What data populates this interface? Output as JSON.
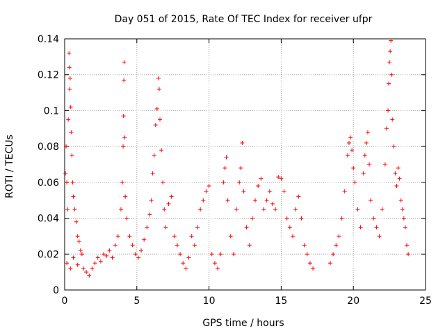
{
  "chart_data": {
    "type": "scatter",
    "title": "Day 051 of 2015, Rate Of TEC Index for receiver ufpr",
    "xlabel": "GPS time / hours",
    "ylabel": "ROTI / TECUs",
    "xlim": [
      0,
      25
    ],
    "ylim": [
      0,
      0.14
    ],
    "xticks": [
      "0",
      "5",
      "10",
      "15",
      "20",
      "25"
    ],
    "yticks": [
      "0",
      "0.02",
      "0.04",
      "0.06",
      "0.08",
      "0.1",
      "0.12",
      "0.14"
    ],
    "xtick_values": [
      0,
      5,
      10,
      15,
      20,
      25
    ],
    "ytick_values": [
      0,
      0.02,
      0.04,
      0.06,
      0.08,
      0.1,
      0.12,
      0.14
    ],
    "grid": true,
    "marker": "+",
    "color": "#ff0000",
    "series": [
      {
        "name": "ROTI",
        "points": [
          [
            0.05,
            0.065
          ],
          [
            0.1,
            0.08
          ],
          [
            0.15,
            0.06
          ],
          [
            0.2,
            0.045
          ],
          [
            0.25,
            0.095
          ],
          [
            0.3,
            0.132
          ],
          [
            0.32,
            0.124
          ],
          [
            0.35,
            0.112
          ],
          [
            0.38,
            0.118
          ],
          [
            0.42,
            0.102
          ],
          [
            0.45,
            0.088
          ],
          [
            0.5,
            0.075
          ],
          [
            0.55,
            0.06
          ],
          [
            0.6,
            0.052
          ],
          [
            0.7,
            0.045
          ],
          [
            0.8,
            0.038
          ],
          [
            0.9,
            0.03
          ],
          [
            1.0,
            0.027
          ],
          [
            1.1,
            0.022
          ],
          [
            1.2,
            0.02
          ],
          [
            0.15,
            0.015
          ],
          [
            0.4,
            0.012
          ],
          [
            0.6,
            0.018
          ],
          [
            0.9,
            0.014
          ],
          [
            1.3,
            0.012
          ],
          [
            1.5,
            0.01
          ],
          [
            1.7,
            0.008
          ],
          [
            1.9,
            0.012
          ],
          [
            2.1,
            0.015
          ],
          [
            2.3,
            0.018
          ],
          [
            2.5,
            0.016
          ],
          [
            2.7,
            0.02
          ],
          [
            2.9,
            0.019
          ],
          [
            3.1,
            0.022
          ],
          [
            3.3,
            0.018
          ],
          [
            3.5,
            0.025
          ],
          [
            3.7,
            0.03
          ],
          [
            3.9,
            0.045
          ],
          [
            4.0,
            0.06
          ],
          [
            4.05,
            0.08
          ],
          [
            4.08,
            0.097
          ],
          [
            4.1,
            0.117
          ],
          [
            4.12,
            0.127
          ],
          [
            4.15,
            0.085
          ],
          [
            4.2,
            0.052
          ],
          [
            4.3,
            0.04
          ],
          [
            4.5,
            0.03
          ],
          [
            4.7,
            0.025
          ],
          [
            4.9,
            0.02
          ],
          [
            5.1,
            0.018
          ],
          [
            5.3,
            0.022
          ],
          [
            5.5,
            0.028
          ],
          [
            5.7,
            0.035
          ],
          [
            5.9,
            0.042
          ],
          [
            6.0,
            0.05
          ],
          [
            6.1,
            0.065
          ],
          [
            6.2,
            0.075
          ],
          [
            6.3,
            0.092
          ],
          [
            6.4,
            0.101
          ],
          [
            6.5,
            0.118
          ],
          [
            6.55,
            0.112
          ],
          [
            6.6,
            0.095
          ],
          [
            6.7,
            0.078
          ],
          [
            6.8,
            0.06
          ],
          [
            6.9,
            0.045
          ],
          [
            7.0,
            0.035
          ],
          [
            7.2,
            0.048
          ],
          [
            7.4,
            0.052
          ],
          [
            7.6,
            0.03
          ],
          [
            7.8,
            0.025
          ],
          [
            8.0,
            0.02
          ],
          [
            8.2,
            0.015
          ],
          [
            8.4,
            0.012
          ],
          [
            8.6,
            0.018
          ],
          [
            8.8,
            0.03
          ],
          [
            9.0,
            0.025
          ],
          [
            9.2,
            0.035
          ],
          [
            9.4,
            0.045
          ],
          [
            9.6,
            0.05
          ],
          [
            9.8,
            0.055
          ],
          [
            10.0,
            0.058
          ],
          [
            10.2,
            0.02
          ],
          [
            10.4,
            0.015
          ],
          [
            10.6,
            0.012
          ],
          [
            10.8,
            0.02
          ],
          [
            11.0,
            0.06
          ],
          [
            11.1,
            0.068
          ],
          [
            11.2,
            0.074
          ],
          [
            11.3,
            0.05
          ],
          [
            11.5,
            0.03
          ],
          [
            11.7,
            0.02
          ],
          [
            11.9,
            0.045
          ],
          [
            12.1,
            0.06
          ],
          [
            12.2,
            0.068
          ],
          [
            12.3,
            0.082
          ],
          [
            12.4,
            0.055
          ],
          [
            12.6,
            0.035
          ],
          [
            12.8,
            0.025
          ],
          [
            13.0,
            0.04
          ],
          [
            13.2,
            0.05
          ],
          [
            13.4,
            0.058
          ],
          [
            13.6,
            0.062
          ],
          [
            13.8,
            0.045
          ],
          [
            14.0,
            0.05
          ],
          [
            14.2,
            0.055
          ],
          [
            14.4,
            0.048
          ],
          [
            14.6,
            0.045
          ],
          [
            14.8,
            0.063
          ],
          [
            15.0,
            0.062
          ],
          [
            15.2,
            0.055
          ],
          [
            15.4,
            0.04
          ],
          [
            15.6,
            0.035
          ],
          [
            15.8,
            0.03
          ],
          [
            16.0,
            0.045
          ],
          [
            16.2,
            0.052
          ],
          [
            16.4,
            0.04
          ],
          [
            16.6,
            0.025
          ],
          [
            16.8,
            0.02
          ],
          [
            17.0,
            0.015
          ],
          [
            17.2,
            0.012
          ],
          [
            18.4,
            0.015
          ],
          [
            18.6,
            0.02
          ],
          [
            18.8,
            0.025
          ],
          [
            19.0,
            0.03
          ],
          [
            19.2,
            0.04
          ],
          [
            19.4,
            0.055
          ],
          [
            19.6,
            0.075
          ],
          [
            19.7,
            0.082
          ],
          [
            19.8,
            0.085
          ],
          [
            19.9,
            0.078
          ],
          [
            20.0,
            0.068
          ],
          [
            20.1,
            0.06
          ],
          [
            20.3,
            0.045
          ],
          [
            20.5,
            0.035
          ],
          [
            20.7,
            0.065
          ],
          [
            20.8,
            0.075
          ],
          [
            20.9,
            0.082
          ],
          [
            21.0,
            0.088
          ],
          [
            21.1,
            0.07
          ],
          [
            21.2,
            0.05
          ],
          [
            21.4,
            0.04
          ],
          [
            21.6,
            0.035
          ],
          [
            21.8,
            0.03
          ],
          [
            22.0,
            0.045
          ],
          [
            22.2,
            0.07
          ],
          [
            22.3,
            0.09
          ],
          [
            22.4,
            0.1
          ],
          [
            22.45,
            0.115
          ],
          [
            22.5,
            0.127
          ],
          [
            22.55,
            0.133
          ],
          [
            22.6,
            0.139
          ],
          [
            22.65,
            0.12
          ],
          [
            22.7,
            0.095
          ],
          [
            22.8,
            0.08
          ],
          [
            22.9,
            0.065
          ],
          [
            23.0,
            0.058
          ],
          [
            23.1,
            0.068
          ],
          [
            23.2,
            0.062
          ],
          [
            23.3,
            0.05
          ],
          [
            23.4,
            0.045
          ],
          [
            23.5,
            0.04
          ],
          [
            23.6,
            0.035
          ],
          [
            23.7,
            0.025
          ],
          [
            23.8,
            0.02
          ]
        ]
      }
    ]
  }
}
